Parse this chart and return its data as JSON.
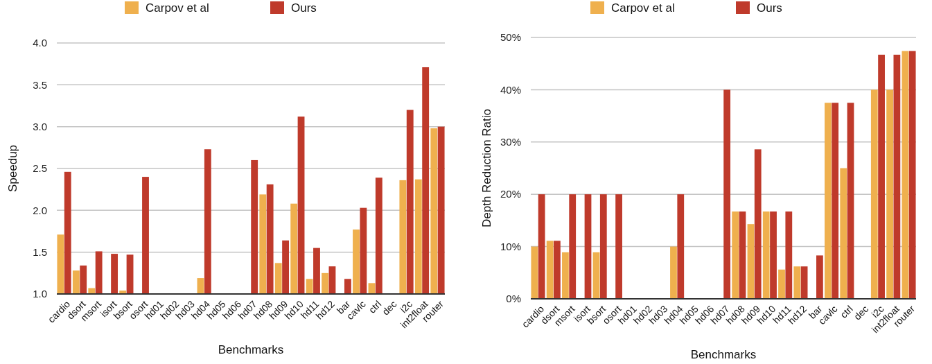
{
  "chart_data": [
    {
      "type": "bar",
      "xlabel": "Benchmarks",
      "ylabel": "Speedup",
      "categories": [
        "cardio",
        "dsort",
        "msort",
        "isort",
        "bsort",
        "osort",
        "hd01",
        "hd02",
        "hd03",
        "hd04",
        "hd05",
        "hd06",
        "hd07",
        "hd08",
        "hd09",
        "hd10",
        "hd11",
        "hd12",
        "bar",
        "cavlc",
        "ctrl",
        "dec",
        "i2c",
        "int2float",
        "router"
      ],
      "series": [
        {
          "name": "Carpov et al",
          "color": "#efb04e",
          "values": [
            1.71,
            1.28,
            1.07,
            1.0,
            1.04,
            1.0,
            1.0,
            1.0,
            1.0,
            1.19,
            1.0,
            1.0,
            1.0,
            2.19,
            1.37,
            2.08,
            1.18,
            1.25,
            1.0,
            1.77,
            1.13,
            1.0,
            2.36,
            2.37,
            2.98
          ]
        },
        {
          "name": "Ours",
          "color": "#bf3a2b",
          "values": [
            2.46,
            1.34,
            1.51,
            1.48,
            1.47,
            2.4,
            1.0,
            1.0,
            1.0,
            2.73,
            1.0,
            1.0,
            2.6,
            2.31,
            1.64,
            3.12,
            1.55,
            1.33,
            1.18,
            2.03,
            2.39,
            1.0,
            3.2,
            3.71,
            3.0
          ]
        }
      ],
      "ylim": [
        1.0,
        4.0
      ],
      "yticks": [
        {
          "value": 1.0,
          "label": "1.0"
        },
        {
          "value": 1.5,
          "label": "1.5"
        },
        {
          "value": 2.0,
          "label": "2.0"
        },
        {
          "value": 2.5,
          "label": "2.5"
        },
        {
          "value": 3.0,
          "label": "3.0"
        },
        {
          "value": 3.5,
          "label": "3.5"
        },
        {
          "value": 4.0,
          "label": "4.0"
        }
      ],
      "grid": "y",
      "legend": "top"
    },
    {
      "type": "bar",
      "xlabel": "Benchmarks",
      "ylabel": "Depth Reduction Ratio",
      "categories": [
        "cardio",
        "dsort",
        "msort",
        "isort",
        "bsort",
        "osort",
        "hd01",
        "hd02",
        "hd03",
        "hd04",
        "hd05",
        "hd06",
        "hd07",
        "hd08",
        "hd09",
        "hd10",
        "hd11",
        "hd12",
        "bar",
        "cavlc",
        "ctrl",
        "dec",
        "i2c",
        "int2float",
        "router"
      ],
      "series": [
        {
          "name": "Carpov et al",
          "color": "#efb04e",
          "values": [
            10,
            11.1,
            8.9,
            0,
            8.9,
            0,
            0,
            0,
            0,
            10,
            0,
            0,
            0,
            16.7,
            14.3,
            16.7,
            5.6,
            6.2,
            0,
            37.5,
            25,
            0,
            40,
            40,
            47.4
          ]
        },
        {
          "name": "Ours",
          "color": "#bf3a2b",
          "values": [
            20,
            11.1,
            20,
            20,
            20,
            20,
            0,
            0,
            0,
            20,
            0,
            0,
            40,
            16.7,
            28.6,
            16.7,
            16.7,
            6.2,
            8.3,
            37.5,
            37.5,
            0,
            46.7,
            46.7,
            47.4
          ]
        }
      ],
      "ylim": [
        0,
        50
      ],
      "yticks": [
        {
          "value": 0,
          "label": "0%"
        },
        {
          "value": 10,
          "label": "10%"
        },
        {
          "value": 20,
          "label": "20%"
        },
        {
          "value": 30,
          "label": "30%"
        },
        {
          "value": 40,
          "label": "40%"
        },
        {
          "value": 50,
          "label": "50%"
        }
      ],
      "grid": "y",
      "legend": "top"
    }
  ]
}
